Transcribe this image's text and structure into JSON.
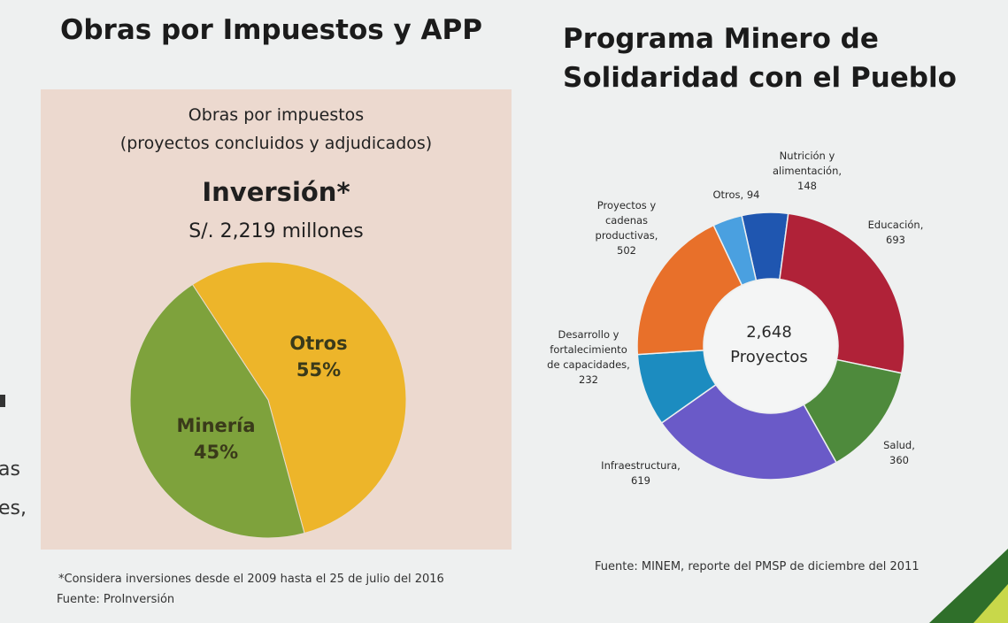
{
  "left": {
    "heading": "Obras por Impuestos y APP",
    "panel_subtitle_1": "Obras por impuestos",
    "panel_subtitle_2": "(proyectos concluidos y adjudicados)",
    "investment_title": "Inversión*",
    "investment_amount": "S/. 2,219 millones",
    "footnote": "*Considera inversiones desde el 2009 hasta el 25 de julio del 2016",
    "source": "Fuente: ProInversión"
  },
  "right": {
    "heading_line1": "Programa Minero de",
    "heading_line2": "Solidaridad con el Pueblo",
    "source": "Fuente: MINEM, reporte del PMSP de diciembre del 2011"
  },
  "edge_fragments": [
    "as",
    "es,"
  ],
  "chart_data": [
    {
      "type": "pie",
      "title": "Inversión*",
      "slices": [
        {
          "name": "Otros",
          "value": 55,
          "label": "55%",
          "color": "#edb52a"
        },
        {
          "name": "Minería",
          "value": 45,
          "label": "45%",
          "color": "#7ea23c"
        }
      ]
    },
    {
      "type": "pie",
      "donut": true,
      "center_value": "2,648",
      "center_label": "Proyectos",
      "slices": [
        {
          "name": "Nutrición y alimentación,",
          "value": 148,
          "label_lines": [
            "Nutrición y",
            "alimentación,",
            "148"
          ],
          "color": "#1f56b0"
        },
        {
          "name": "Educación,",
          "value": 693,
          "label_lines": [
            "Educación,",
            "693"
          ],
          "color": "#b02238"
        },
        {
          "name": "Salud,",
          "value": 360,
          "label_lines": [
            "Salud,",
            "360"
          ],
          "color": "#4e8a3c"
        },
        {
          "name": "Infraestructura,",
          "value": 619,
          "label_lines": [
            "Infraestructura,",
            "619"
          ],
          "color": "#6a5ac8"
        },
        {
          "name": "Desarrollo y fortalecimiento de capacidades,",
          "value": 232,
          "label_lines": [
            "Desarrollo y",
            "fortalecimiento",
            "de capacidades,",
            "232"
          ],
          "color": "#1c8cc0"
        },
        {
          "name": "Proyectos y cadenas productivas,",
          "value": 502,
          "label_lines": [
            "Proyectos y",
            "cadenas",
            "productivas,",
            "502"
          ],
          "color": "#e8702a"
        },
        {
          "name": "Otros,",
          "value": 94,
          "label_lines": [
            "Otros, 94"
          ],
          "color": "#4aa0e0"
        }
      ]
    }
  ]
}
